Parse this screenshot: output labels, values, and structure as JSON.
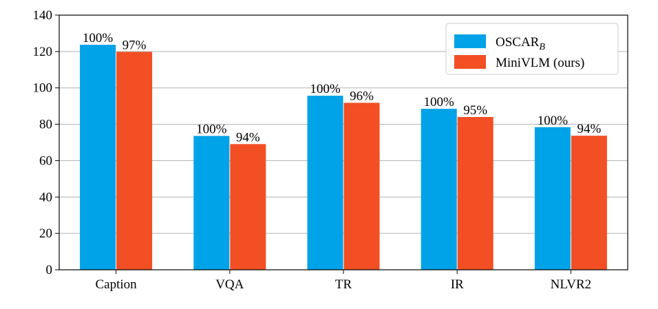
{
  "chart_data": {
    "type": "bar",
    "categories": [
      "Caption",
      "VQA",
      "TR",
      "IR",
      "NLVR2"
    ],
    "series": [
      {
        "name": "OSCAR",
        "name_subscript": "B",
        "color": "#00a2e8",
        "values": [
          123.7,
          73.6,
          95.7,
          88.5,
          78.4
        ],
        "labels": [
          "100%",
          "100%",
          "100%",
          "100%",
          "100%"
        ]
      },
      {
        "name": "MiniVLM (ours)",
        "color": "#f24f24",
        "values": [
          119.8,
          69.1,
          91.8,
          84.0,
          73.7
        ],
        "labels": [
          "97%",
          "94%",
          "96%",
          "95%",
          "94%"
        ]
      }
    ],
    "title": "",
    "xlabel": "",
    "ylabel": "",
    "ylim": [
      0,
      140
    ],
    "yticks": [
      0,
      20,
      40,
      60,
      80,
      100,
      120,
      140
    ],
    "grid": "horizontal",
    "legend": "top-right"
  }
}
